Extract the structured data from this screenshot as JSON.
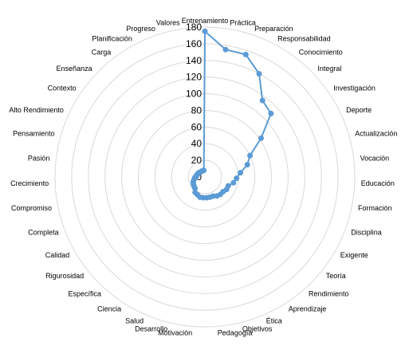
{
  "chart_data": {
    "type": "radar",
    "categories": [
      "Entrenamiento",
      "Práctica",
      "Preparación",
      "Responsabilidad",
      "Conocimiento",
      "Integral",
      "Investigación",
      "Deporte",
      "Actualización",
      "Vocación",
      "Educación",
      "Formación",
      "Disciplina",
      "Exigente",
      "Teoría",
      "Rendimiento",
      "Aprendizaje",
      "Ética",
      "Objetivos",
      "Pedagogía",
      "Motivación",
      "Desarrollo",
      "Salud",
      "Ciencia",
      "Específica",
      "Rigurosidad",
      "Calidad",
      "Completa",
      "Compromiso",
      "Crecimiento",
      "Pasión",
      "Pensamiento",
      "Alto Rendimiento",
      "Contexto",
      "Enseñanza",
      "Carga",
      "Planificación",
      "Progreso",
      "Valores"
    ],
    "values": [
      175,
      155,
      155,
      140,
      115,
      110,
      82,
      60,
      53,
      43,
      38,
      35,
      30,
      30,
      28,
      28,
      27,
      25,
      25,
      25,
      25,
      25,
      23,
      22,
      18,
      17,
      16,
      15,
      13,
      12,
      10,
      10,
      9,
      9,
      8,
      8,
      8,
      8,
      8
    ],
    "ylim": [
      0,
      180
    ],
    "ticks": [
      "0",
      "20",
      "40",
      "60",
      "80",
      "100",
      "120",
      "140",
      "160",
      "180"
    ],
    "grid": true,
    "line_color": "#5B9BD5",
    "grid_color": "#D9D9D9"
  }
}
